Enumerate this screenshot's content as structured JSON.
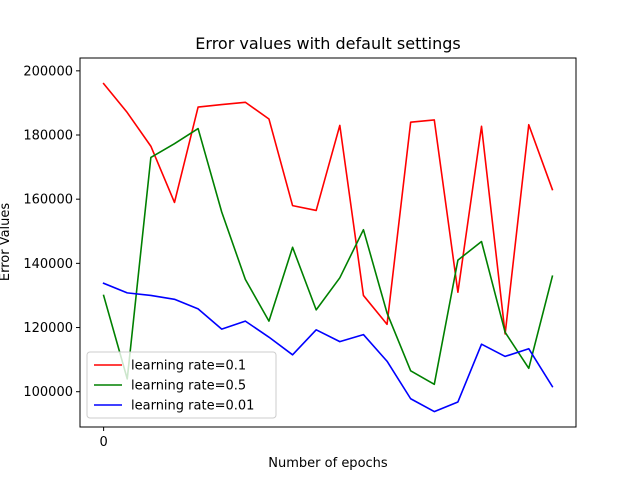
{
  "chart_data": {
    "type": "line",
    "title": "Error values with default settings",
    "xlabel": "Number of epochs",
    "ylabel": "Error Values",
    "x": [
      0,
      1,
      2,
      3,
      4,
      5,
      6,
      7,
      8,
      9,
      10,
      11,
      12,
      13,
      14,
      15,
      16,
      17,
      18,
      19
    ],
    "xticks": [
      0
    ],
    "xtick_labels": [
      "0"
    ],
    "xlim": [
      -1,
      20
    ],
    "ylim": [
      89000,
      204000
    ],
    "yticks": [
      100000,
      120000,
      140000,
      160000,
      180000,
      200000
    ],
    "ytick_labels": [
      "100000",
      "120000",
      "140000",
      "160000",
      "180000",
      "200000"
    ],
    "grid": false,
    "legend_position": "lower-left",
    "series": [
      {
        "name": "learning rate=0.1",
        "color": "#ff0000",
        "values": [
          196000,
          187000,
          176500,
          159000,
          188700,
          189500,
          190200,
          185000,
          158000,
          156500,
          183000,
          130000,
          121000,
          184000,
          184700,
          131000,
          182700,
          118000,
          183200,
          163000
        ]
      },
      {
        "name": "learning rate=0.5",
        "color": "#008000",
        "values": [
          130000,
          104000,
          173000,
          177300,
          182000,
          156000,
          135000,
          122000,
          145000,
          125500,
          135500,
          150500,
          124500,
          106500,
          102300,
          141000,
          146800,
          118500,
          107300,
          136000
        ]
      },
      {
        "name": "learning rate=0.01",
        "color": "#0000ff",
        "values": [
          133800,
          130800,
          130000,
          128800,
          125800,
          119500,
          122000,
          117000,
          111500,
          119300,
          115600,
          117800,
          109500,
          97800,
          93800,
          96800,
          114800,
          111000,
          113400,
          101600
        ]
      }
    ]
  }
}
